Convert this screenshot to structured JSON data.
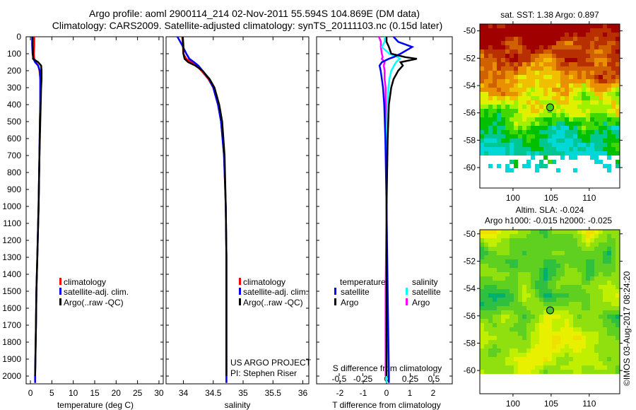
{
  "title": {
    "line1": "Argo profile: aoml 2900114_214 02-Nov-2011 55.594S 104.869E (DM data)",
    "line2": "Climatology: CARS2009. Satellite-adjusted climatology: synTS_20111103.nc (0.15d later)"
  },
  "copyright": "©IMOS 03-Aug-2017 08:24:20",
  "colors": {
    "climatology": "#ff0000",
    "satellite": "#0000ff",
    "argo": "#000000",
    "sal_satellite": "#00ffff",
    "sal_argo": "#ff00ff"
  },
  "chart_data": [
    {
      "type": "line",
      "id": "temperature",
      "xlabel": "temperature (deg C)",
      "ylabel": "",
      "xlim": [
        -1,
        31
      ],
      "ylim": [
        2045,
        0
      ],
      "xticks": [
        "0",
        "5",
        "10",
        "15",
        "20",
        "25",
        "30"
      ],
      "yticks": [
        "0",
        "100",
        "200",
        "300",
        "400",
        "500",
        "600",
        "700",
        "800",
        "900",
        "1000",
        "1100",
        "1200",
        "1300",
        "1400",
        "1500",
        "1600",
        "1700",
        "1800",
        "1900",
        "2000"
      ],
      "legend": [
        "climatology",
        "satellite-adj. clim.",
        "Argo(..raw -QC)"
      ],
      "depth": [
        0,
        50,
        100,
        130,
        150,
        170,
        200,
        250,
        300,
        400,
        500,
        700,
        1000,
        1300,
        1500,
        1700,
        2000,
        2040
      ],
      "series": [
        {
          "name": "climatology",
          "values": [
            0.9,
            0.9,
            0.8,
            0.9,
            1.2,
            1.8,
            2.1,
            2.3,
            2.3,
            2.3,
            2.2,
            2.1,
            1.9,
            1.6,
            1.4,
            1.3,
            1.1,
            1.1
          ]
        },
        {
          "name": "satellite-adj. clim.",
          "values": [
            0.4,
            0.4,
            0.5,
            0.7,
            1.1,
            1.8,
            2.2,
            2.3,
            2.3,
            2.3,
            2.2,
            2.1,
            1.9,
            1.6,
            1.4,
            1.3,
            1.1,
            1.1
          ]
        },
        {
          "name": "Argo(..raw -QC)",
          "values": [
            0.5,
            0.5,
            0.6,
            0.6,
            1.8,
            2.5,
            2.6,
            2.6,
            2.5,
            2.4,
            2.3,
            2.1,
            1.9,
            1.6,
            1.4,
            1.3,
            1.1,
            null
          ]
        }
      ],
      "annotations": []
    },
    {
      "type": "line",
      "id": "salinity",
      "xlabel": "salinity",
      "xlim": [
        33.71,
        36.1
      ],
      "ylim": [
        2045,
        0
      ],
      "xticks": [
        "34",
        "34.5",
        "35",
        "35.5",
        "36"
      ],
      "legend": [
        "climatology",
        "satellite-adj. clim.",
        "Argo(..raw -QC)"
      ],
      "depth": [
        0,
        50,
        100,
        130,
        150,
        170,
        200,
        250,
        300,
        400,
        500,
        700,
        1000,
        1300,
        1500,
        1700,
        2000,
        2040
      ],
      "series": [
        {
          "name": "climatology",
          "values": [
            33.98,
            33.99,
            34.0,
            34.05,
            34.13,
            34.22,
            34.3,
            34.42,
            34.5,
            34.58,
            34.63,
            34.68,
            34.71,
            34.72,
            34.72,
            34.72,
            34.72,
            34.72
          ]
        },
        {
          "name": "satellite-adj. clim.",
          "values": [
            33.9,
            33.98,
            34.05,
            34.1,
            34.18,
            34.25,
            34.32,
            34.43,
            34.5,
            34.58,
            34.63,
            34.68,
            34.71,
            34.72,
            34.72,
            34.72,
            34.72,
            34.72
          ]
        },
        {
          "name": "Argo(..raw -QC)",
          "values": [
            33.99,
            34.0,
            34.0,
            34.02,
            34.08,
            34.2,
            34.32,
            34.44,
            34.52,
            34.6,
            34.65,
            34.69,
            34.71,
            34.72,
            34.72,
            34.72,
            34.72,
            null
          ]
        }
      ],
      "annotations": [
        "US ARGO PROJECT",
        "PI: Stephen Riser"
      ]
    },
    {
      "type": "line",
      "id": "difference",
      "xlabel": "T difference from climatology",
      "x2label": "S difference from climatology",
      "xlim": [
        -3,
        2.82
      ],
      "ylim": [
        2045,
        0
      ],
      "xticks": [
        "-2",
        "-1",
        "0",
        "1",
        "2"
      ],
      "x2ticks": [
        "-0.5",
        "-0.25",
        "0",
        "0.25",
        "0.5"
      ],
      "legend_titles": [
        "temperature",
        "salinity"
      ],
      "legend": [
        "satellite",
        "Argo",
        "satellite",
        "Argo"
      ],
      "depth": [
        0,
        30,
        60,
        100,
        120,
        130,
        150,
        170,
        200,
        250,
        300,
        400,
        600,
        1000,
        1500,
        2000,
        2040
      ],
      "series": [
        {
          "name": "temperature satellite",
          "values": [
            0.3,
            0.5,
            1.1,
            0.6,
            0.3,
            0.1,
            -0.2,
            -0.3,
            -0.25,
            -0.2,
            -0.15,
            -0.1,
            -0.05,
            0.0,
            0.05,
            0.1,
            0.1
          ]
        },
        {
          "name": "temperature Argo",
          "values": [
            0.0,
            0.0,
            0.1,
            0.2,
            0.8,
            1.3,
            0.6,
            0.7,
            0.5,
            0.3,
            0.2,
            0.1,
            0.05,
            0.0,
            0.0,
            0.0,
            null
          ]
        },
        {
          "name": "salinity satellite (S units)",
          "values": [
            -0.02,
            -0.02,
            -0.05,
            0.03,
            0.12,
            0.14,
            0.1,
            0.08,
            0.05,
            0.03,
            0.02,
            0.01,
            0.0,
            0.0,
            0.0,
            0.0,
            0.0
          ]
        },
        {
          "name": "salinity Argo (S units)",
          "values": [
            -0.08,
            -0.06,
            -0.06,
            -0.05,
            -0.04,
            -0.05,
            -0.02,
            -0.03,
            -0.02,
            -0.02,
            -0.01,
            -0.01,
            0.0,
            0.0,
            -0.01,
            -0.01,
            null
          ]
        }
      ]
    },
    {
      "type": "heatmap",
      "id": "sst_map",
      "title": "sat. SST: 1.38 Argo: 0.897",
      "xlim": [
        95.65,
        114
      ],
      "ylim": [
        -61.5,
        -49.5
      ],
      "xticks": [
        "100",
        "105",
        "110"
      ],
      "yticks": [
        "-50",
        "-52",
        "-54",
        "-56",
        "-58",
        "-60"
      ],
      "marker": {
        "lon": 104.869,
        "lat": -55.594
      }
    },
    {
      "type": "heatmap",
      "id": "sla_map",
      "title": "Altim. SLA: -0.024",
      "subtitle": "Argo h1000: -0.015 h2000: -0.025",
      "xlim": [
        95.65,
        114
      ],
      "ylim": [
        -61.7,
        -49.7
      ],
      "xticks": [
        "100",
        "105",
        "110"
      ],
      "yticks": [
        "-50",
        "-52",
        "-54",
        "-56",
        "-58",
        "-60"
      ],
      "marker": {
        "lon": 104.869,
        "lat": -55.594
      }
    }
  ]
}
